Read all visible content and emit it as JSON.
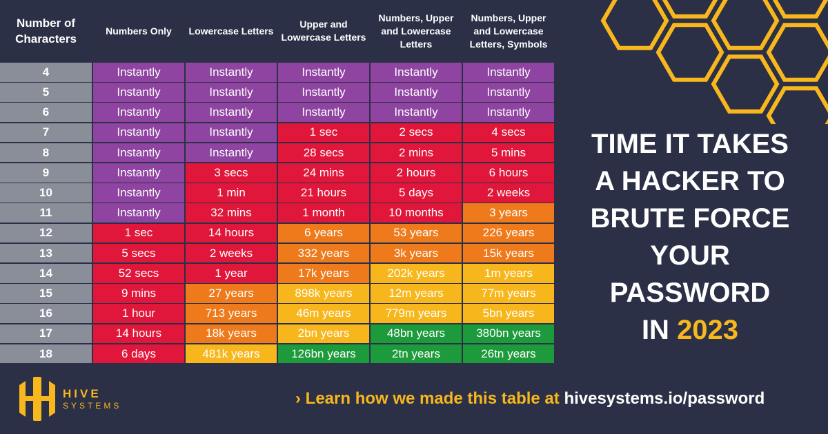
{
  "chart_data": {
    "type": "table",
    "columns": [
      "Number of Characters",
      "Numbers Only",
      "Lowercase Letters",
      "Upper and Lowercase Letters",
      "Numbers, Upper and Lowercase Letters",
      "Numbers, Upper and Lowercase Letters, Symbols"
    ],
    "rows": [
      {
        "n": "4",
        "cells": [
          [
            "Instantly",
            "instant"
          ],
          [
            "Instantly",
            "instant"
          ],
          [
            "Instantly",
            "instant"
          ],
          [
            "Instantly",
            "instant"
          ],
          [
            "Instantly",
            "instant"
          ]
        ]
      },
      {
        "n": "5",
        "cells": [
          [
            "Instantly",
            "instant"
          ],
          [
            "Instantly",
            "instant"
          ],
          [
            "Instantly",
            "instant"
          ],
          [
            "Instantly",
            "instant"
          ],
          [
            "Instantly",
            "instant"
          ]
        ]
      },
      {
        "n": "6",
        "cells": [
          [
            "Instantly",
            "instant"
          ],
          [
            "Instantly",
            "instant"
          ],
          [
            "Instantly",
            "instant"
          ],
          [
            "Instantly",
            "instant"
          ],
          [
            "Instantly",
            "instant"
          ]
        ]
      },
      {
        "n": "7",
        "cells": [
          [
            "Instantly",
            "instant"
          ],
          [
            "Instantly",
            "instant"
          ],
          [
            "1 sec",
            "red"
          ],
          [
            "2 secs",
            "red"
          ],
          [
            "4 secs",
            "red"
          ]
        ]
      },
      {
        "n": "8",
        "cells": [
          [
            "Instantly",
            "instant"
          ],
          [
            "Instantly",
            "instant"
          ],
          [
            "28 secs",
            "red"
          ],
          [
            "2 mins",
            "red"
          ],
          [
            "5 mins",
            "red"
          ]
        ]
      },
      {
        "n": "9",
        "cells": [
          [
            "Instantly",
            "instant"
          ],
          [
            "3 secs",
            "red"
          ],
          [
            "24 mins",
            "red"
          ],
          [
            "2 hours",
            "red"
          ],
          [
            "6 hours",
            "red"
          ]
        ]
      },
      {
        "n": "10",
        "cells": [
          [
            "Instantly",
            "instant"
          ],
          [
            "1 min",
            "red"
          ],
          [
            "21 hours",
            "red"
          ],
          [
            "5 days",
            "red"
          ],
          [
            "2 weeks",
            "red"
          ]
        ]
      },
      {
        "n": "11",
        "cells": [
          [
            "Instantly",
            "instant"
          ],
          [
            "32 mins",
            "red"
          ],
          [
            "1 month",
            "red"
          ],
          [
            "10 months",
            "red"
          ],
          [
            "3 years",
            "orange"
          ]
        ]
      },
      {
        "n": "12",
        "cells": [
          [
            "1 sec",
            "red"
          ],
          [
            "14 hours",
            "red"
          ],
          [
            "6 years",
            "orange"
          ],
          [
            "53 years",
            "orange"
          ],
          [
            "226 years",
            "orange"
          ]
        ]
      },
      {
        "n": "13",
        "cells": [
          [
            "5 secs",
            "red"
          ],
          [
            "2 weeks",
            "red"
          ],
          [
            "332 years",
            "orange"
          ],
          [
            "3k years",
            "orange"
          ],
          [
            "15k years",
            "orange"
          ]
        ]
      },
      {
        "n": "14",
        "cells": [
          [
            "52 secs",
            "red"
          ],
          [
            "1 year",
            "red"
          ],
          [
            "17k years",
            "orange"
          ],
          [
            "202k years",
            "yellow"
          ],
          [
            "1m years",
            "yellow"
          ]
        ]
      },
      {
        "n": "15",
        "cells": [
          [
            "9 mins",
            "red"
          ],
          [
            "27 years",
            "orange"
          ],
          [
            "898k years",
            "yellow"
          ],
          [
            "12m years",
            "yellow"
          ],
          [
            "77m years",
            "yellow"
          ]
        ]
      },
      {
        "n": "16",
        "cells": [
          [
            "1 hour",
            "red"
          ],
          [
            "713 years",
            "orange"
          ],
          [
            "46m years",
            "yellow"
          ],
          [
            "779m years",
            "yellow"
          ],
          [
            "5bn years",
            "yellow"
          ]
        ]
      },
      {
        "n": "17",
        "cells": [
          [
            "14 hours",
            "red"
          ],
          [
            "18k years",
            "orange"
          ],
          [
            "2bn years",
            "yellow"
          ],
          [
            "48bn years",
            "green"
          ],
          [
            "380bn years",
            "green"
          ]
        ]
      },
      {
        "n": "18",
        "cells": [
          [
            "6 days",
            "red"
          ],
          [
            "481k years",
            "yellow"
          ],
          [
            "126bn years",
            "green"
          ],
          [
            "2tn years",
            "green"
          ],
          [
            "26tn years",
            "green"
          ]
        ]
      }
    ],
    "level_colors": {
      "instant": "#8e44a0",
      "red": "#e0163a",
      "orange": "#ee7a1b",
      "yellow": "#f8b61d",
      "green": "#1c9a3c"
    }
  },
  "title": {
    "line1": "TIME IT TAKES",
    "line2": "A HACKER TO",
    "line3": "BRUTE FORCE",
    "line4": "YOUR",
    "line5": "PASSWORD",
    "line6_prefix": "IN ",
    "year": "2023"
  },
  "logo": {
    "line1": "HIVE",
    "line2": "SYSTEMS"
  },
  "footer": {
    "chevron": "›",
    "text": "Learn how we made this table at ",
    "url": "hivesystems.io/password"
  },
  "colors": {
    "background": "#2b3046",
    "accent": "#f8b71d"
  }
}
